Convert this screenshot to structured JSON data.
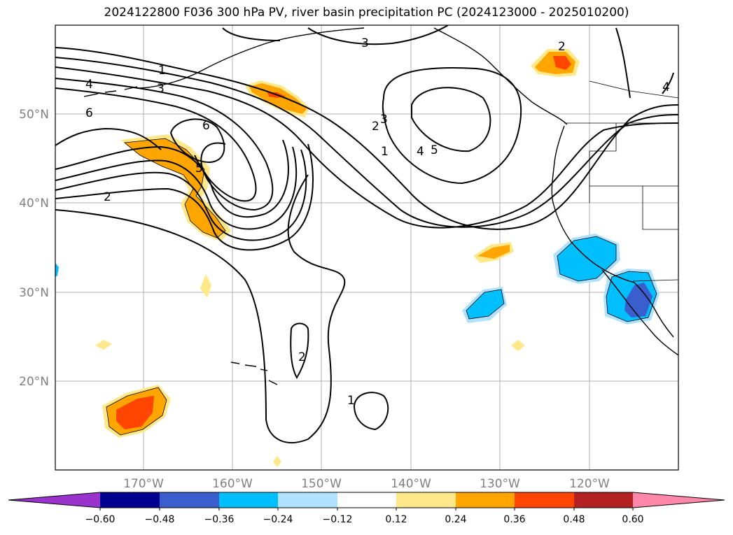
{
  "title": "2024122800 F036 300 hPa PV, river basin precipitation PC (2024123000 - 2025010200)",
  "lat_labels": [
    "50°N",
    "40°N",
    "30°N",
    "20°N"
  ],
  "lon_labels": [
    "170°W",
    "160°W",
    "150°W",
    "140°W",
    "130°W",
    "120°W"
  ],
  "contour_labels": {
    "c1a": "1",
    "c3a": "3",
    "c4a": "4",
    "c6a": "6",
    "c6b": "6",
    "c5a": "5",
    "c2a": "2",
    "c3b": "3",
    "c2b": "2",
    "c1b": "1",
    "c4b": "4",
    "c5b": "5",
    "c2c": "2",
    "c3c": "3",
    "c4c": "4",
    "c2d": "2",
    "c1c": "1"
  },
  "colorbar": {
    "colors": [
      "#9933cc",
      "#000090",
      "#3a5fcd",
      "#00bfff",
      "#b0e2ff",
      "#ffffff",
      "#ffe88a",
      "#ffa500",
      "#ff4500",
      "#b22222",
      "#ff88aa"
    ],
    "ticks": [
      "−0.60",
      "−0.48",
      "−0.36",
      "−0.24",
      "−0.12",
      "0.12",
      "0.24",
      "0.36",
      "0.48",
      "0.60"
    ]
  }
}
